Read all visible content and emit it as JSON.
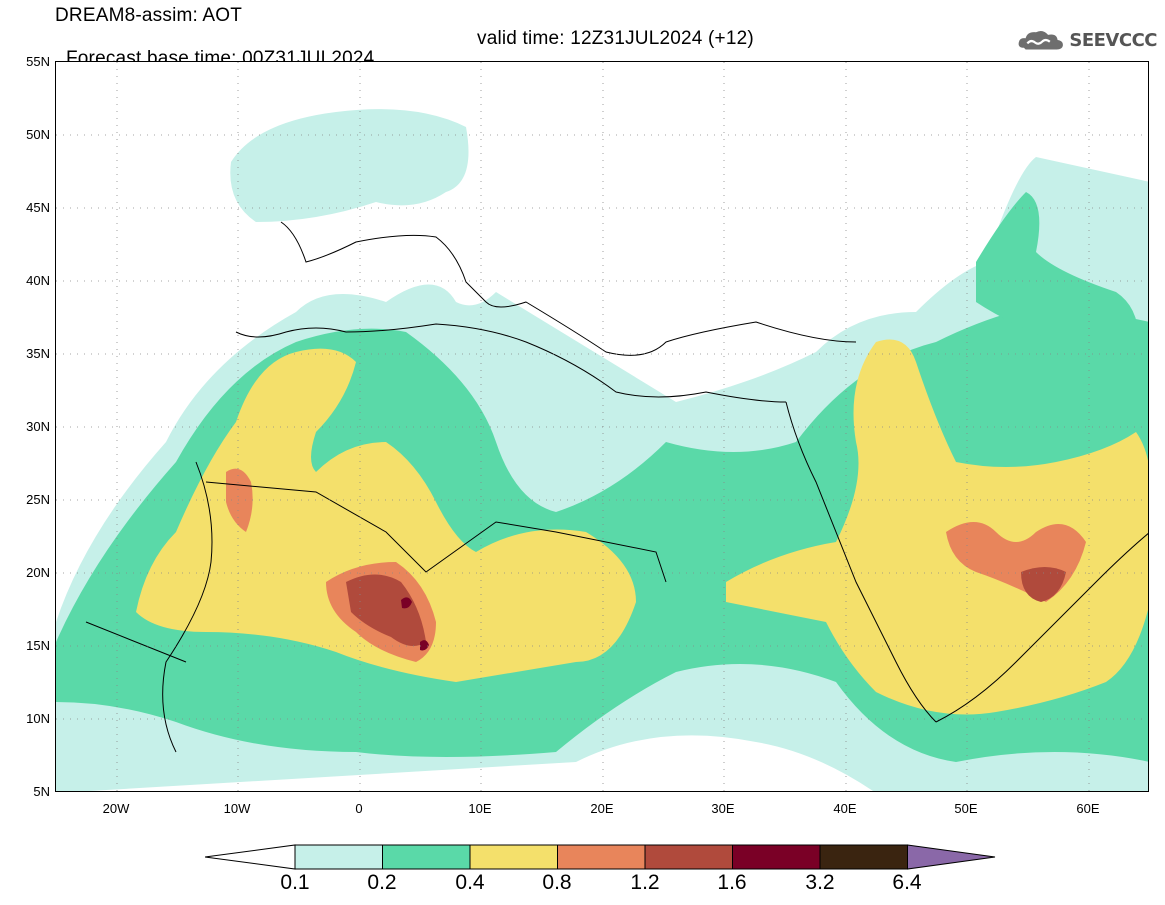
{
  "header": {
    "title_line1": "DREAM8-assim: AOT",
    "title_line2": "Forecast base time: 00Z31JUL2024",
    "valid_time": "valid time: 12Z31JUL2024 (+12)",
    "logo_text": "SEEVCCC",
    "logo_icon": "cloud-icon"
  },
  "map": {
    "region": "North Africa, Mediterranean and Middle East",
    "variable": "AOT",
    "lon_range": [
      -25,
      65
    ],
    "lat_range": [
      5,
      55
    ],
    "lat_labels": [
      "55N",
      "50N",
      "45N",
      "40N",
      "35N",
      "30N",
      "25N",
      "20N",
      "15N",
      "10N",
      "5N"
    ],
    "lon_labels": [
      "20W",
      "10W",
      "0",
      "10E",
      "20E",
      "30E",
      "40E",
      "50E",
      "60E"
    ],
    "grid": "dotted"
  },
  "colorbar": {
    "boundaries": [
      "0.1",
      "0.2",
      "0.4",
      "0.8",
      "1.2",
      "1.6",
      "3.2",
      "6.4"
    ],
    "colors": [
      "#ffffff",
      "#c6f0e9",
      "#5ad9a8",
      "#f4e06b",
      "#e8855b",
      "#b04a3c",
      "#7a0026",
      "#3a2410",
      "#8a68a8"
    ]
  }
}
